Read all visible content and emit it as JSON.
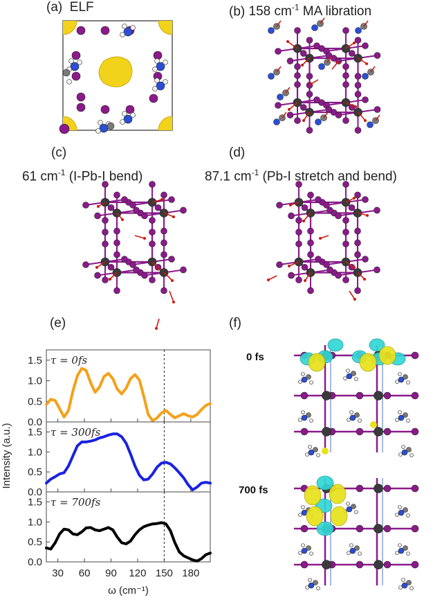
{
  "panels": {
    "a": {
      "label": "(a)",
      "title": "ELF"
    },
    "b": {
      "label": "(b)",
      "title_pre": "158 cm",
      "title_sup": "-1",
      "title_post": " MA libration"
    },
    "c": {
      "label": "(c)",
      "title_pre": "61 cm",
      "title_sup": "-1",
      "title_post": " (I-Pb-I bend)"
    },
    "d": {
      "label": "(d)",
      "title_pre": "87.1 cm",
      "title_sup": "-1",
      "title_post": " (Pb-I stretch and bend)"
    },
    "e": {
      "label": "(e)"
    },
    "f": {
      "label": "(f)",
      "snapshots": [
        "0 fs",
        "700 fs"
      ]
    }
  },
  "colors": {
    "lead": "#3a3a3a",
    "iodine": "#8b1a8b",
    "carbon": "#7a7a7a",
    "nitrogen": "#2a4fd6",
    "hydrogen": "#f2f2f2",
    "elf": "#f2d31b",
    "arrow": "#cc1a10",
    "iso_cyan": "#33d6d6",
    "iso_yellow": "#e8e21a"
  },
  "chart_data": {
    "type": "line",
    "ylabel": "Intensity (a.u.)",
    "xlabel": "ω (cm⁻¹)",
    "xlim": [
      17,
      202
    ],
    "ylim": [
      0,
      1.75
    ],
    "xticks": [
      30,
      60,
      90,
      120,
      150,
      180
    ],
    "yticks": [
      0.0,
      0.5,
      1.0,
      1.5
    ],
    "vline": 150,
    "series": [
      {
        "name": "τ = 0fs",
        "color": "#f5a11a",
        "x": [
          17,
          22,
          27,
          32,
          37,
          42,
          47,
          52,
          57,
          62,
          67,
          72,
          77,
          82,
          87,
          92,
          97,
          102,
          107,
          112,
          117,
          122,
          127,
          132,
          137,
          142,
          147,
          152,
          157,
          162,
          167,
          172,
          177,
          182,
          187,
          192,
          197,
          202
        ],
        "y": [
          0.42,
          0.55,
          0.52,
          0.32,
          0.12,
          0.28,
          0.75,
          1.12,
          1.3,
          1.25,
          0.95,
          0.72,
          0.85,
          1.1,
          1.18,
          1.05,
          0.8,
          0.68,
          0.82,
          1.05,
          1.15,
          1.02,
          0.62,
          0.18,
          0.03,
          0.1,
          0.22,
          0.28,
          0.18,
          0.1,
          0.15,
          0.2,
          0.15,
          0.12,
          0.18,
          0.3,
          0.4,
          0.45
        ]
      },
      {
        "name": "τ = 300fs",
        "color": "#1a22e0",
        "x": [
          17,
          22,
          27,
          32,
          37,
          42,
          47,
          52,
          57,
          62,
          67,
          72,
          77,
          82,
          87,
          92,
          97,
          102,
          107,
          112,
          117,
          122,
          127,
          132,
          137,
          142,
          147,
          152,
          157,
          162,
          167,
          172,
          177,
          182,
          187,
          192,
          197,
          202
        ],
        "y": [
          0.22,
          0.32,
          0.38,
          0.45,
          0.48,
          0.65,
          0.9,
          1.15,
          1.25,
          1.25,
          1.27,
          1.3,
          1.35,
          1.38,
          1.42,
          1.45,
          1.45,
          1.38,
          1.22,
          0.95,
          0.65,
          0.42,
          0.3,
          0.32,
          0.45,
          0.62,
          0.72,
          0.74,
          0.7,
          0.6,
          0.48,
          0.35,
          0.18,
          0.05,
          0.12,
          0.22,
          0.24,
          0.22
        ]
      },
      {
        "name": "τ = 700fs",
        "color": "#000000",
        "x": [
          17,
          22,
          27,
          32,
          37,
          42,
          47,
          52,
          57,
          62,
          67,
          72,
          77,
          82,
          87,
          92,
          97,
          102,
          107,
          112,
          117,
          122,
          127,
          132,
          137,
          142,
          147,
          152,
          157,
          162,
          167,
          172,
          177,
          182,
          187,
          192,
          197,
          202
        ],
        "y": [
          0.35,
          0.32,
          0.48,
          0.7,
          0.82,
          0.8,
          0.7,
          0.68,
          0.75,
          0.85,
          0.86,
          0.8,
          0.78,
          0.82,
          0.86,
          0.8,
          0.62,
          0.48,
          0.45,
          0.52,
          0.68,
          0.8,
          0.88,
          0.92,
          0.95,
          0.96,
          0.98,
          0.95,
          0.78,
          0.48,
          0.25,
          0.15,
          0.1,
          0.05,
          0.02,
          0.08,
          0.18,
          0.22
        ]
      }
    ]
  }
}
